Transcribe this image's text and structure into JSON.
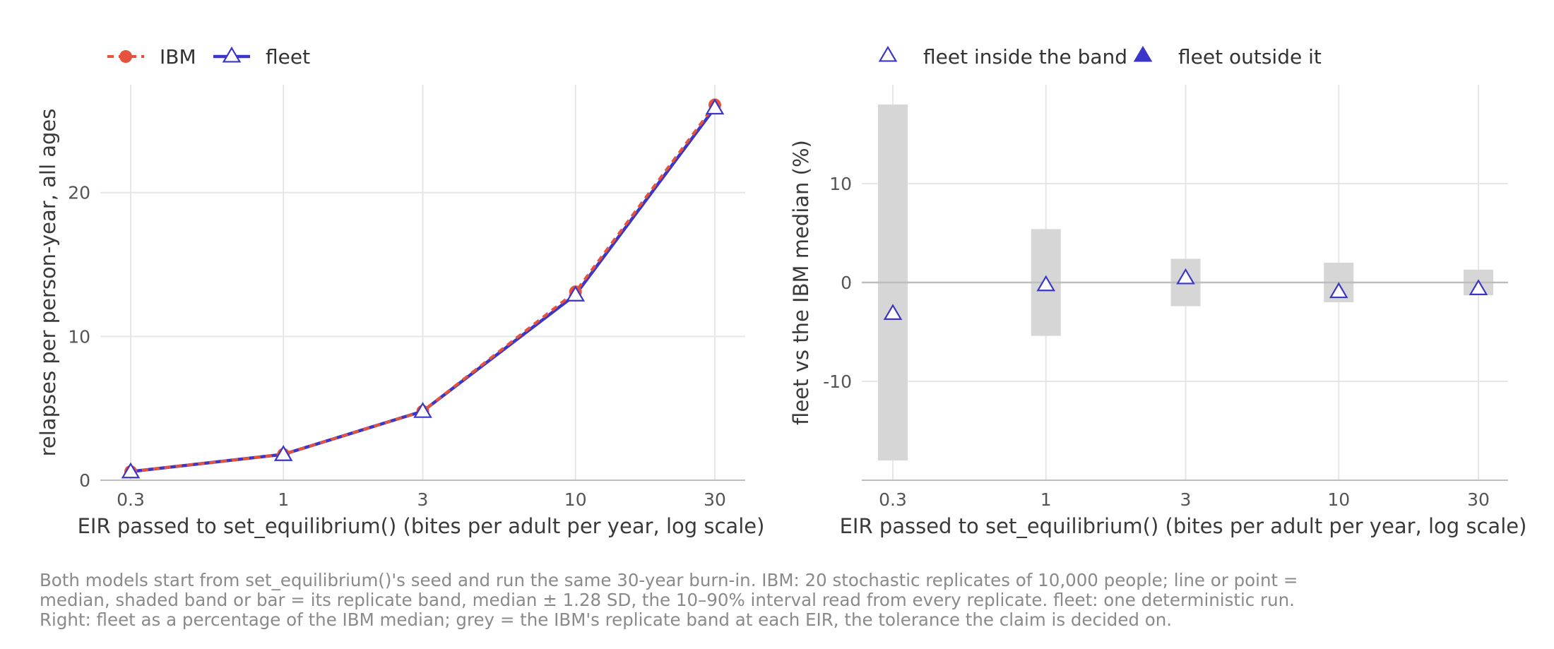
{
  "chart_data": [
    {
      "type": "line",
      "panel": "left",
      "x": [
        0.3,
        1,
        3,
        10,
        30
      ],
      "xscale": "log",
      "xticks": [
        "0.3",
        "1",
        "3",
        "10",
        "30"
      ],
      "xlabel": "EIR passed to set_equilibrium() (bites per adult per year, log scale)",
      "ylabel": "relapses per person-year, all ages",
      "yticks": [
        "0",
        "10",
        "20"
      ],
      "ylim": [
        0,
        27.5
      ],
      "grid": true,
      "legend_position": "top-left",
      "series": [
        {
          "name": "IBM",
          "values": [
            0.6,
            1.8,
            4.8,
            13.1,
            26.1
          ],
          "color": "#e5533d",
          "style": "dashed",
          "marker": "circle"
        },
        {
          "name": "fleet",
          "values": [
            0.6,
            1.8,
            4.8,
            12.9,
            25.9
          ],
          "color": "#3b35c8",
          "style": "solid",
          "marker": "triangle-open"
        }
      ]
    },
    {
      "type": "scatter",
      "panel": "right",
      "x": [
        0.3,
        1,
        3,
        10,
        30
      ],
      "xscale": "log",
      "xticks": [
        "0.3",
        "1",
        "3",
        "10",
        "30"
      ],
      "xlabel": "EIR passed to set_equilibrium() (bites per adult per year, log scale)",
      "ylabel": "fleet vs the IBM median (%)",
      "yticks": [
        "-10",
        "0",
        "10"
      ],
      "ylim": [
        -20,
        20
      ],
      "grid": true,
      "reference_line": 0,
      "legend_position": "top",
      "legend": [
        {
          "name": "fleet inside the band",
          "marker": "triangle-open"
        },
        {
          "name": "fleet outside it",
          "marker": "triangle-filled"
        }
      ],
      "band": {
        "lower": [
          -18,
          -5.4,
          -2.4,
          -2.0,
          -1.3
        ],
        "upper": [
          18,
          5.4,
          2.4,
          2.0,
          1.3
        ],
        "color": "#d6d6d6"
      },
      "series": [
        {
          "name": "fleet inside the band",
          "values": [
            -3.1,
            -0.2,
            0.5,
            -0.9,
            -0.6
          ],
          "color": "#3b35c8",
          "marker": "triangle-open"
        }
      ]
    }
  ],
  "caption": [
    "Both models start from set_equilibrium()'s seed and run the same 30-year burn-in. IBM: 20 stochastic replicates of 10,000 people; line or point =",
    "median, shaded band or bar = its replicate band, median ± 1.28 SD, the 10–90% interval read from every replicate. fleet: one deterministic run.",
    "Right: fleet as a percentage of the IBM median; grey = the IBM's replicate band at each EIR, the tolerance the claim is decided on."
  ]
}
